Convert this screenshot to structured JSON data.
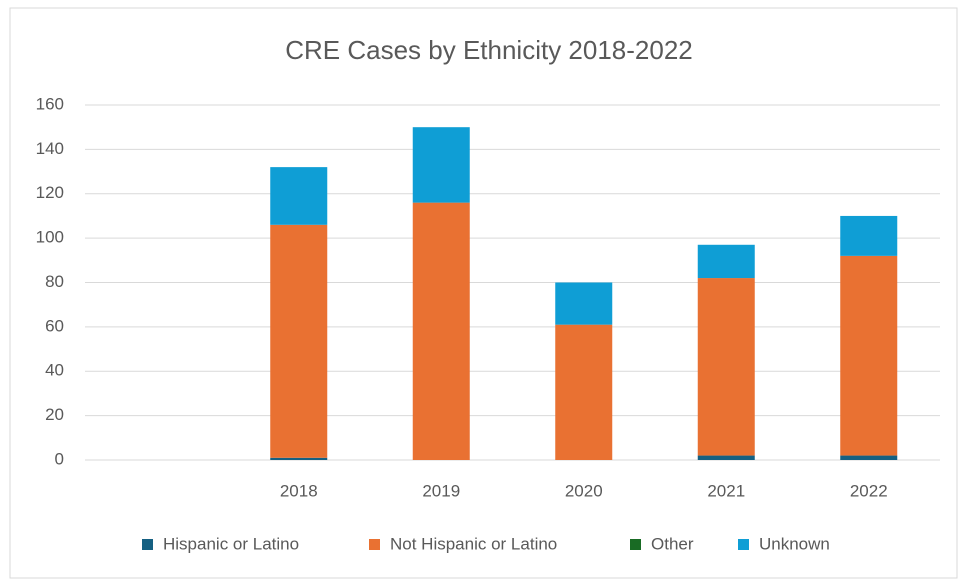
{
  "chart_data": {
    "type": "stacked_bar",
    "title": "CRE Cases by Ethnicity 2018-2022",
    "categories": [
      null,
      "2018",
      "2019",
      "2020",
      "2021",
      "2022"
    ],
    "series": [
      {
        "name": "Hispanic or Latino",
        "color": "#156082",
        "values": [
          null,
          1,
          0,
          0,
          2,
          2
        ]
      },
      {
        "name": "Not Hispanic or Latino",
        "color": "#e97132",
        "values": [
          null,
          105,
          116,
          61,
          80,
          90
        ]
      },
      {
        "name": "Other",
        "color": "#196b24",
        "values": [
          null,
          0,
          0,
          0,
          0,
          0
        ]
      },
      {
        "name": "Unknown",
        "color": "#0f9ed5",
        "values": [
          null,
          26,
          34,
          19,
          15,
          18
        ]
      }
    ],
    "ylim": [
      0,
      160
    ],
    "yticks": [
      0,
      20,
      40,
      60,
      80,
      100,
      120,
      140,
      160
    ],
    "grid": true,
    "legend": "bottom"
  }
}
